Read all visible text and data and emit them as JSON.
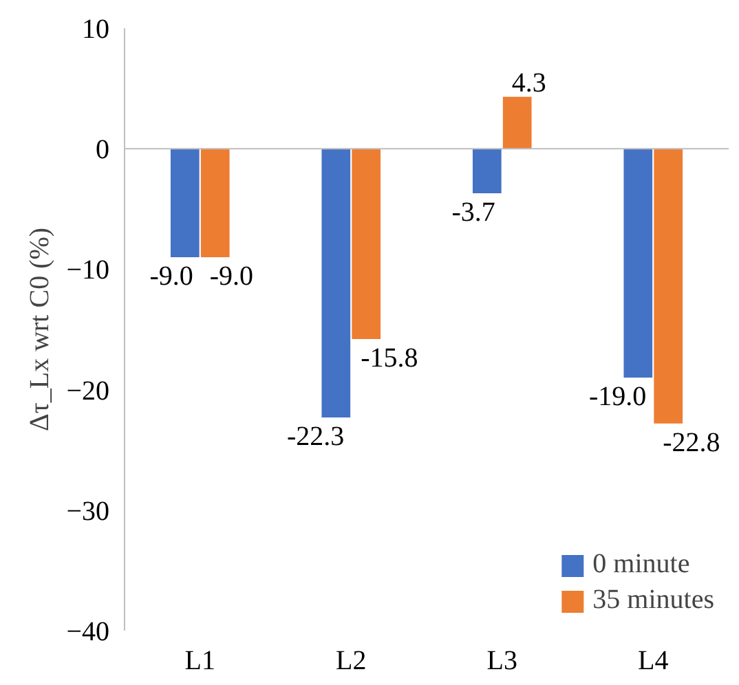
{
  "chart_data": {
    "type": "bar",
    "ylabel": "Δτ_Lx wrt C0 (%)",
    "categories": [
      "L1",
      "L2",
      "L3",
      "L4"
    ],
    "series": [
      {
        "name": "0 minute",
        "color": "#4472c4",
        "values": [
          -9.0,
          -22.3,
          -3.7,
          -19.0
        ],
        "value_labels": [
          "-9.0",
          "-22.3",
          "-3.7",
          "-19.0"
        ]
      },
      {
        "name": "35 minutes",
        "color": "#ed7d31",
        "values": [
          -9.0,
          -15.8,
          4.3,
          -22.8
        ],
        "value_labels": [
          "-9.0",
          "-15.8",
          "4.3",
          "-22.8"
        ]
      }
    ],
    "ylim": [
      -40,
      10
    ],
    "yticks": [
      -40,
      -30,
      -20,
      -10,
      0,
      10
    ],
    "legend": "bottom right"
  }
}
